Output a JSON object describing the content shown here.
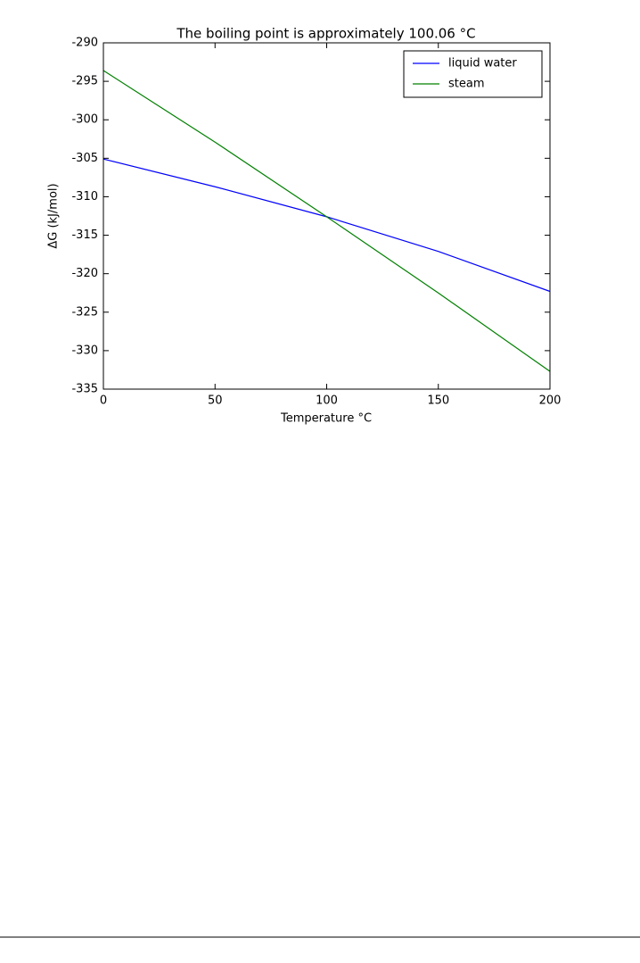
{
  "chart_data": {
    "type": "line",
    "title": "The boiling point is approximately 100.06 °C",
    "xlabel": "Temperature °C",
    "ylabel": "ΔG (kJ/mol)",
    "x": [
      0,
      50,
      100,
      150,
      200
    ],
    "series": [
      {
        "name": "liquid water",
        "color": "#0000ff",
        "values": [
          -305.1,
          -308.7,
          -312.6,
          -317.1,
          -322.3
        ]
      },
      {
        "name": "steam",
        "color": "#008000",
        "values": [
          -293.6,
          -302.9,
          -312.6,
          -322.5,
          -332.7
        ]
      }
    ],
    "xlim": [
      0,
      200
    ],
    "xticks": [
      0,
      50,
      100,
      150,
      200
    ],
    "ylim": [
      -335,
      -290
    ],
    "yticks": [
      -335,
      -330,
      -325,
      -320,
      -315,
      -310,
      -305,
      -300,
      -295,
      -290
    ],
    "grid": false,
    "legend": "upper-right"
  }
}
